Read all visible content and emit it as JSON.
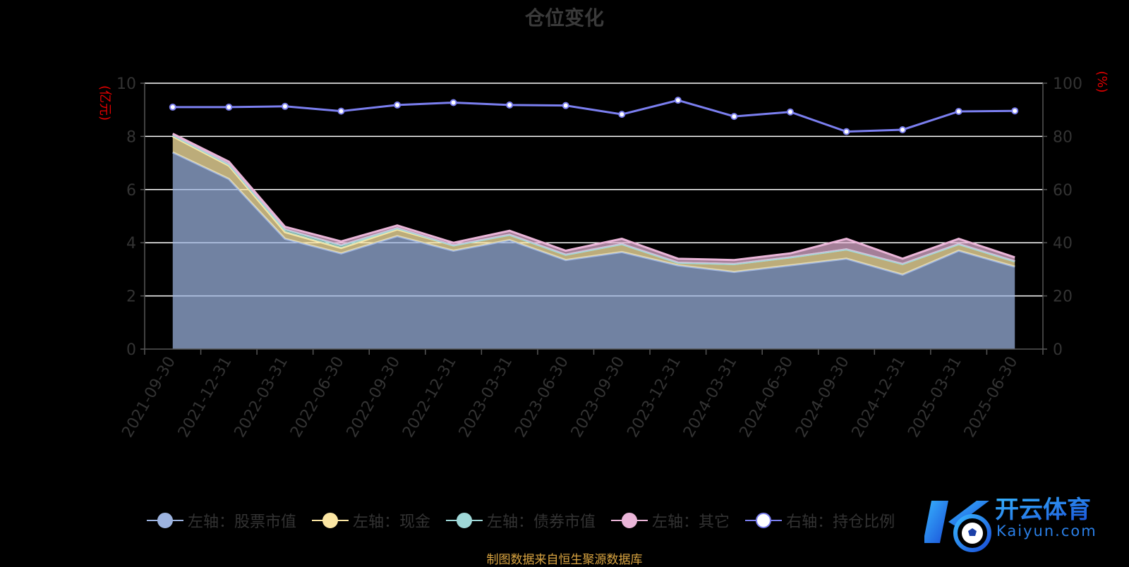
{
  "title": "仓位变化",
  "source": "制图数据来自恒生聚源数据库",
  "watermark": {
    "brand": "开云体育",
    "domain": "Kaiyun.com"
  },
  "colors": {
    "stock": "#9db4e0",
    "cash": "#fbe6a3",
    "bond": "#9fd8d8",
    "other": "#eab5d8",
    "ratio": "#7b7ff0",
    "axis_unit": "#e00000",
    "tick": "#333333",
    "grid": "#ffffff"
  },
  "legend": [
    {
      "label": "左轴：股票市值",
      "color": "#9db4e0"
    },
    {
      "label": "左轴：现金",
      "color": "#fbe6a3"
    },
    {
      "label": "左轴：债券市值",
      "color": "#9fd8d8"
    },
    {
      "label": "左轴：其它",
      "color": "#eab5d8"
    },
    {
      "label": "右轴：持仓比例",
      "color": "#7b7ff0"
    }
  ],
  "chart_data": {
    "type": "area",
    "title": "仓位变化",
    "categories": [
      "2021-09-30",
      "2021-12-31",
      "2022-03-31",
      "2022-06-30",
      "2022-09-30",
      "2022-12-31",
      "2023-03-31",
      "2023-06-30",
      "2023-09-30",
      "2023-12-31",
      "2024-03-31",
      "2024-06-30",
      "2024-09-30",
      "2024-12-31",
      "2025-03-31",
      "2025-06-30"
    ],
    "left_axis": {
      "unit": "(亿元)",
      "ylim": [
        0,
        10
      ],
      "ticks": [
        0,
        2,
        4,
        6,
        8,
        10
      ]
    },
    "right_axis": {
      "unit": "(%)",
      "ylim": [
        0,
        100
      ],
      "ticks": [
        0,
        20,
        40,
        60,
        80,
        100
      ]
    },
    "grid": true,
    "legend_position": "bottom",
    "series": [
      {
        "name": "左轴：股票市值",
        "type": "area",
        "stacked": true,
        "axis": "left",
        "values": [
          7.4,
          6.4,
          4.15,
          3.6,
          4.25,
          3.7,
          4.1,
          3.35,
          3.65,
          3.15,
          2.9,
          3.15,
          3.4,
          2.8,
          3.7,
          3.1
        ]
      },
      {
        "name": "左轴：现金",
        "type": "area",
        "stacked": true,
        "axis": "left",
        "values": [
          0.6,
          0.5,
          0.25,
          0.2,
          0.25,
          0.2,
          0.2,
          0.2,
          0.3,
          0.1,
          0.3,
          0.3,
          0.35,
          0.4,
          0.25,
          0.2
        ]
      },
      {
        "name": "左轴：债券市值",
        "type": "area",
        "stacked": true,
        "axis": "left",
        "values": [
          0.05,
          0.05,
          0.1,
          0.1,
          0.05,
          0.0,
          0.0,
          0.0,
          0.0,
          0.0,
          0.0,
          0.0,
          0.0,
          0.0,
          0.0,
          0.0
        ]
      },
      {
        "name": "左轴：其它",
        "type": "area",
        "stacked": true,
        "axis": "left",
        "values": [
          0.05,
          0.1,
          0.1,
          0.15,
          0.1,
          0.1,
          0.15,
          0.15,
          0.2,
          0.15,
          0.15,
          0.15,
          0.4,
          0.2,
          0.2,
          0.15
        ]
      },
      {
        "name": "右轴：持仓比例",
        "type": "line",
        "axis": "right",
        "values": [
          91.0,
          91.0,
          91.3,
          89.5,
          91.8,
          92.7,
          91.8,
          91.6,
          88.3,
          93.6,
          87.5,
          89.2,
          81.8,
          82.5,
          89.4,
          89.6
        ]
      }
    ]
  }
}
